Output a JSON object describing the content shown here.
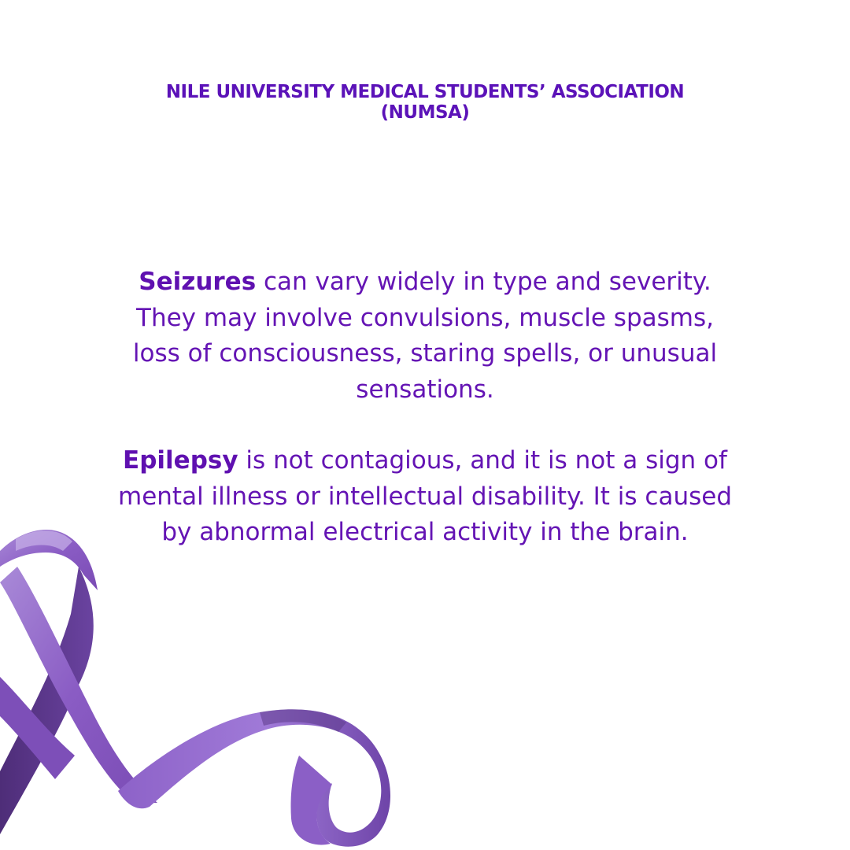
{
  "header": {
    "line1": "NILE UNIVERSITY MEDICAL STUDENTS’ ASSOCIATION",
    "line2": "(NUMSA)"
  },
  "paragraphs": [
    {
      "bold": "Seizures",
      "text": " can vary widely in type and severity. They may involve convulsions, muscle spasms, loss of consciousness, staring spells, or unusual sensations."
    },
    {
      "bold": "Epilepsy",
      "text": " is not contagious, and it is not a sign of mental illness or intellectual disability. It is caused by abnormal electrical activity in the brain."
    }
  ],
  "colors": {
    "text": "#6414b4",
    "ribbon": "#8a5cc4",
    "ribbon_dark": "#5a3585"
  },
  "decoration": {
    "icon": "awareness-ribbon-icon"
  }
}
